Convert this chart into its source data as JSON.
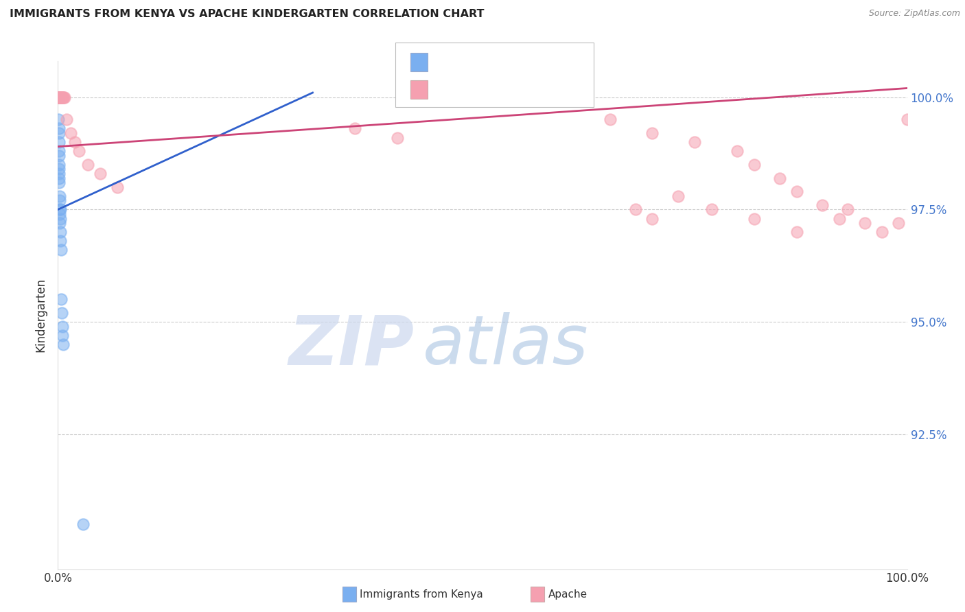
{
  "title": "IMMIGRANTS FROM KENYA VS APACHE KINDERGARTEN CORRELATION CHART",
  "source": "Source: ZipAtlas.com",
  "ylabel": "Kindergarten",
  "legend_label_blue": "Immigrants from Kenya",
  "legend_label_pink": "Apache",
  "ytick_vals": [
    92.5,
    95.0,
    97.5,
    100.0
  ],
  "ytick_labels": [
    "92.5%",
    "95.0%",
    "97.5%",
    "100.0%"
  ],
  "xlim": [
    0,
    100
  ],
  "ylim": [
    89.5,
    100.8
  ],
  "blue_color": "#7aaff0",
  "pink_color": "#f5a0b0",
  "blue_scatter_x": [
    0.0,
    0.02,
    0.03,
    0.04,
    0.04,
    0.05,
    0.05,
    0.05,
    0.06,
    0.07,
    0.08,
    0.08,
    0.09,
    0.1,
    0.1,
    0.1,
    0.11,
    0.12,
    0.12,
    0.13,
    0.14,
    0.15,
    0.17,
    0.18,
    0.2,
    0.2,
    0.22,
    0.25,
    0.28,
    0.3,
    0.3,
    0.32,
    0.35,
    0.4,
    0.45,
    0.5,
    0.55,
    0.6,
    3.0
  ],
  "blue_scatter_y": [
    100.0,
    100.0,
    100.0,
    100.0,
    100.0,
    100.0,
    100.0,
    100.0,
    100.0,
    100.0,
    100.0,
    100.0,
    99.5,
    99.3,
    99.0,
    98.8,
    99.2,
    98.7,
    98.5,
    98.4,
    98.3,
    98.2,
    98.1,
    97.8,
    97.7,
    97.5,
    97.4,
    97.2,
    97.0,
    97.3,
    97.5,
    96.8,
    96.6,
    95.5,
    95.2,
    94.9,
    94.7,
    94.5,
    90.5
  ],
  "pink_scatter_x": [
    0.03,
    0.05,
    0.07,
    0.08,
    0.1,
    0.12,
    0.14,
    0.16,
    0.18,
    0.2,
    0.22,
    0.25,
    0.28,
    0.3,
    0.35,
    0.4,
    0.45,
    0.5,
    0.55,
    0.6,
    0.7,
    0.8,
    1.0,
    1.5,
    2.0,
    2.5,
    3.5,
    5.0,
    7.0,
    35.0,
    40.0,
    50.0,
    55.0,
    60.0,
    65.0,
    70.0,
    75.0,
    80.0,
    82.0,
    85.0,
    87.0,
    90.0,
    92.0,
    93.0,
    95.0,
    97.0,
    99.0,
    100.0,
    68.0,
    70.0,
    73.0,
    77.0,
    82.0,
    87.0
  ],
  "pink_scatter_y": [
    100.0,
    100.0,
    100.0,
    100.0,
    100.0,
    100.0,
    100.0,
    100.0,
    100.0,
    100.0,
    100.0,
    100.0,
    100.0,
    100.0,
    100.0,
    100.0,
    100.0,
    100.0,
    100.0,
    100.0,
    100.0,
    100.0,
    99.5,
    99.2,
    99.0,
    98.8,
    98.5,
    98.3,
    98.0,
    99.3,
    99.1,
    100.0,
    100.0,
    100.0,
    99.5,
    99.2,
    99.0,
    98.8,
    98.5,
    98.2,
    97.9,
    97.6,
    97.3,
    97.5,
    97.2,
    97.0,
    97.2,
    99.5,
    97.5,
    97.3,
    97.8,
    97.5,
    97.3,
    97.0
  ],
  "blue_trend_x": [
    0,
    30
  ],
  "blue_trend_y": [
    97.5,
    100.1
  ],
  "pink_trend_x": [
    0,
    100
  ],
  "pink_trend_y": [
    98.9,
    100.2
  ],
  "watermark_zip": "ZIP",
  "watermark_atlas": "atlas"
}
